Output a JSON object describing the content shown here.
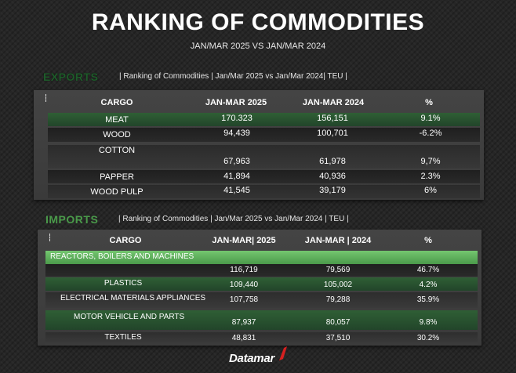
{
  "header": {
    "title": "RANKING OF COMMODITIES",
    "subtitle": "JAN/MAR 2025 VS JAN/MAR 2024"
  },
  "exports": {
    "heading": "EXPORTS",
    "caption": "| Ranking of Commodities | Jan/Mar 2025 vs Jan/Mar 2024| TEU |",
    "columns": [
      "CARGO",
      "JAN-MAR 2025",
      "JAN-MAR 2024",
      "%"
    ],
    "rows": [
      {
        "cargo": "MEAT",
        "v2025": "170.323",
        "v2024": "156,151",
        "pct": "9.1%"
      },
      {
        "cargo": "WOOD",
        "v2025": "94,439",
        "v2024": "100,701",
        "pct": "-6.2%"
      },
      {
        "cargo": "COTTON",
        "v2025": "67,963",
        "v2024": "61,978",
        "pct": "9,7%"
      },
      {
        "cargo": "PAPPER",
        "v2025": "41,894",
        "v2024": "40,936",
        "pct": "2.3%"
      },
      {
        "cargo": "WOOD PULP",
        "v2025": "41,545",
        "v2024": "39,179",
        "pct": "6%"
      }
    ]
  },
  "imports": {
    "heading": "IMPORTS",
    "caption": "| Ranking of Commodities | Jan/Mar 2025 vs Jan/Mar 2024 | TEU |",
    "columns": [
      "CARGO",
      "JAN-MAR| 2025",
      "JAN-MAR | 2024",
      "%"
    ],
    "rows": [
      {
        "cargo": "REACTORS, BOILERS AND MACHINES",
        "v2025": "116,719",
        "v2024": "79,569",
        "pct": "46.7%"
      },
      {
        "cargo": "PLASTICS",
        "v2025": "109,440",
        "v2024": "105,002",
        "pct": "4.2%"
      },
      {
        "cargo": "ELECTRICAL MATERIALS APPLIANCES",
        "v2025": "107,758",
        "v2024": "79,288",
        "pct": "35.9%"
      },
      {
        "cargo": "MOTOR VEHICLE AND PARTS",
        "v2025": "87,937",
        "v2024": "80,057",
        "pct": "9.8%"
      },
      {
        "cargo": "TEXTILES",
        "v2025": "48,831",
        "v2024": "37,510",
        "pct": "30.2%"
      }
    ]
  },
  "chart_data": [
    {
      "type": "table",
      "title": "EXPORTS | Ranking of Commodities | Jan/Mar 2025 vs Jan/Mar 2024 | TEU",
      "columns": [
        "CARGO",
        "JAN-MAR 2025",
        "JAN-MAR 2024",
        "%"
      ],
      "categories": [
        "MEAT",
        "WOOD",
        "COTTON",
        "PAPPER",
        "WOOD PULP"
      ],
      "series": [
        {
          "name": "JAN-MAR 2025",
          "values": [
            170323,
            94439,
            67963,
            41894,
            41545
          ]
        },
        {
          "name": "JAN-MAR 2024",
          "values": [
            156151,
            100701,
            61978,
            40936,
            39179
          ]
        },
        {
          "name": "%",
          "values": [
            9.1,
            -6.2,
            9.7,
            2.3,
            6
          ]
        }
      ]
    },
    {
      "type": "table",
      "title": "IMPORTS | Ranking of Commodities | Jan/Mar 2025 vs Jan/Mar 2024 | TEU",
      "columns": [
        "CARGO",
        "JAN-MAR 2025",
        "JAN-MAR 2024",
        "%"
      ],
      "categories": [
        "REACTORS, BOILERS AND MACHINES",
        "PLASTICS",
        "ELECTRICAL MATERIALS APPLIANCES",
        "MOTOR VEHICLE AND PARTS",
        "TEXTILES"
      ],
      "series": [
        {
          "name": "JAN-MAR 2025",
          "values": [
            116719,
            109440,
            107758,
            87937,
            48831
          ]
        },
        {
          "name": "JAN-MAR 2024",
          "values": [
            79569,
            105002,
            79288,
            80057,
            37510
          ]
        },
        {
          "name": "%",
          "values": [
            46.7,
            4.2,
            35.9,
            9.8,
            30.2
          ]
        }
      ]
    }
  ],
  "footer": {
    "logo_text": "Datamar",
    "accent_color": "#d62020"
  }
}
